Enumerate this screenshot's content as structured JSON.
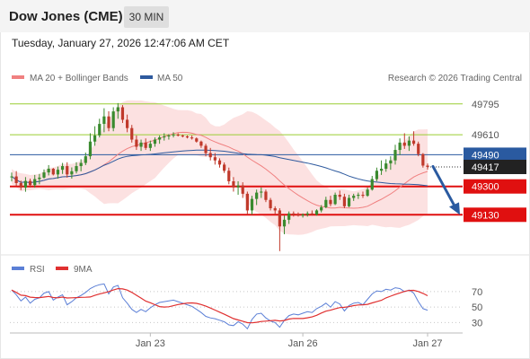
{
  "header": {
    "symbol": "Dow Jones (CME)",
    "timeframe": "30 MIN"
  },
  "timestamp": "Tuesday, January 27, 2026 12:47:06 AM CET",
  "legend": {
    "ma20_bb": "MA 20 + Bollinger Bands",
    "ma50": "MA 50",
    "copyright": "Research © 2026 Trading Central",
    "rsi": "RSI",
    "ma9": "9MA"
  },
  "colors": {
    "bull": "#3a8a2e",
    "bear": "#c0392b",
    "ma20": "#f08080",
    "bollinger_fill": "#fcdede",
    "ma50": "#2e5a9e",
    "support": "#e01010",
    "resistance": "#9acd32",
    "pivot": "#2a5aa0",
    "rsi": "#5b7fd6",
    "rsi_ma9": "#e03030",
    "arrow": "#2a5aa0"
  },
  "chart_data": [
    {
      "type": "candlestick",
      "title": "Dow Jones (CME)",
      "timeframe": "30 MIN",
      "ylim": [
        48900,
        49880
      ],
      "x_ticks": [
        "Jan 23",
        "Jan 26",
        "Jan 27"
      ],
      "levels": [
        {
          "value": 49795,
          "label": "49795",
          "role": "resistance"
        },
        {
          "value": 49610,
          "label": "49610",
          "role": "resistance"
        },
        {
          "value": 49490,
          "label": "49490",
          "role": "pivot"
        },
        {
          "value": 49300,
          "label": "49300",
          "role": "support"
        },
        {
          "value": 49130,
          "label": "49130",
          "role": "support"
        }
      ],
      "last_price": {
        "value": 49417,
        "label": "49417"
      },
      "forecast_arrow": {
        "from": 49420,
        "to": 49140,
        "direction": "down"
      },
      "series": [
        {
          "name": "MA 20",
          "role": "ma20"
        },
        {
          "name": "MA 50",
          "role": "ma50"
        }
      ],
      "ohlc": [
        [
          49355,
          49383,
          49330,
          49360
        ],
        [
          49360,
          49392,
          49304,
          49320
        ],
        [
          49320,
          49335,
          49278,
          49293
        ],
        [
          49293,
          49356,
          49268,
          49333
        ],
        [
          49333,
          49347,
          49293,
          49308
        ],
        [
          49308,
          49369,
          49293,
          49344
        ],
        [
          49344,
          49375,
          49313,
          49353
        ],
        [
          49353,
          49402,
          49347,
          49384
        ],
        [
          49384,
          49428,
          49366,
          49406
        ],
        [
          49406,
          49411,
          49366,
          49372
        ],
        [
          49372,
          49419,
          49347,
          49400
        ],
        [
          49400,
          49441,
          49375,
          49422
        ],
        [
          49422,
          49445,
          49353,
          49372
        ],
        [
          49372,
          49414,
          49347,
          49391
        ],
        [
          49391,
          49445,
          49378,
          49422
        ],
        [
          49422,
          49463,
          49391,
          49441
        ],
        [
          49441,
          49503,
          49428,
          49481
        ],
        [
          49481,
          49619,
          49463,
          49569
        ],
        [
          49569,
          49661,
          49544,
          49606
        ],
        [
          49606,
          49706,
          49594,
          49675
        ],
        [
          49675,
          49769,
          49625,
          49720
        ],
        [
          49720,
          49751,
          49631,
          49650
        ],
        [
          49650,
          49775,
          49631,
          49750
        ],
        [
          49750,
          49800,
          49706,
          49775
        ],
        [
          49775,
          49788,
          49681,
          49700
        ],
        [
          49700,
          49731,
          49625,
          49650
        ],
        [
          49650,
          49669,
          49563,
          49581
        ],
        [
          49581,
          49606,
          49519,
          49538
        ],
        [
          49538,
          49581,
          49513,
          49563
        ],
        [
          49563,
          49588,
          49519,
          49531
        ],
        [
          49531,
          49575,
          49513,
          49556
        ],
        [
          49556,
          49594,
          49538,
          49581
        ],
        [
          49581,
          49606,
          49556,
          49594
        ],
        [
          49594,
          49619,
          49575,
          49600
        ],
        [
          49600,
          49614,
          49581,
          49606
        ],
        [
          49606,
          49625,
          49594,
          49611
        ],
        [
          49611,
          49619,
          49600,
          49605
        ],
        [
          49605,
          49611,
          49594,
          49600
        ],
        [
          49600,
          49606,
          49588,
          49594
        ],
        [
          49594,
          49606,
          49581,
          49588
        ],
        [
          49588,
          49594,
          49563,
          49569
        ],
        [
          49569,
          49575,
          49531,
          49544
        ],
        [
          49544,
          49556,
          49481,
          49500
        ],
        [
          49500,
          49531,
          49456,
          49475
        ],
        [
          49475,
          49500,
          49431,
          49456
        ],
        [
          49456,
          49469,
          49413,
          49431
        ],
        [
          49431,
          49444,
          49381,
          49394
        ],
        [
          49394,
          49413,
          49313,
          49331
        ],
        [
          49331,
          49356,
          49269,
          49294
        ],
        [
          49294,
          49331,
          49250,
          49306
        ],
        [
          49306,
          49325,
          49231,
          49256
        ],
        [
          49256,
          49269,
          49131,
          49156
        ],
        [
          49156,
          49244,
          49131,
          49225
        ],
        [
          49225,
          49281,
          49188,
          49263
        ],
        [
          49263,
          49294,
          49231,
          49269
        ],
        [
          49269,
          49281,
          49206,
          49219
        ],
        [
          49219,
          49231,
          49156,
          49169
        ],
        [
          49169,
          49181,
          49131,
          49156
        ],
        [
          49156,
          49169,
          48912,
          49060
        ],
        [
          49060,
          49125,
          49013,
          49100
        ],
        [
          49100,
          49150,
          49075,
          49138
        ],
        [
          49138,
          49150,
          49119,
          49131
        ],
        [
          49131,
          49144,
          49119,
          49125
        ],
        [
          49125,
          49138,
          49113,
          49131
        ],
        [
          49131,
          49150,
          49119,
          49138
        ],
        [
          49138,
          49156,
          49125,
          49131
        ],
        [
          49131,
          49163,
          49125,
          49156
        ],
        [
          49156,
          49188,
          49144,
          49175
        ],
        [
          49175,
          49238,
          49169,
          49219
        ],
        [
          49219,
          49244,
          49181,
          49194
        ],
        [
          49194,
          49263,
          49188,
          49250
        ],
        [
          49250,
          49275,
          49219,
          49238
        ],
        [
          49238,
          49256,
          49169,
          49181
        ],
        [
          49181,
          49250,
          49175,
          49231
        ],
        [
          49231,
          49256,
          49213,
          49244
        ],
        [
          49244,
          49263,
          49225,
          49250
        ],
        [
          49250,
          49269,
          49231,
          49244
        ],
        [
          49244,
          49294,
          49238,
          49281
        ],
        [
          49281,
          49363,
          49275,
          49344
        ],
        [
          49344,
          49413,
          49331,
          49394
        ],
        [
          49394,
          49456,
          49369,
          49406
        ],
        [
          49406,
          49463,
          49388,
          49438
        ],
        [
          49438,
          49481,
          49400,
          49456
        ],
        [
          49456,
          49550,
          49431,
          49519
        ],
        [
          49519,
          49588,
          49488,
          49563
        ],
        [
          49563,
          49619,
          49525,
          49544
        ],
        [
          49544,
          49600,
          49513,
          49575
        ],
        [
          49575,
          49631,
          49544,
          49556
        ],
        [
          49556,
          49569,
          49481,
          49494
        ],
        [
          49494,
          49500,
          49413,
          49425
        ],
        [
          49425,
          49438,
          49400,
          49417
        ]
      ]
    },
    {
      "type": "line",
      "title": "RSI",
      "ylim": [
        20,
        85
      ],
      "y_ticks": [
        30,
        50,
        70
      ],
      "series": [
        {
          "name": "RSI",
          "role": "rsi",
          "values": [
            72,
            66,
            58,
            63,
            55,
            60,
            62,
            68,
            70,
            59,
            63,
            66,
            53,
            57,
            62,
            65,
            69,
            74,
            77,
            79,
            80,
            67,
            76,
            78,
            62,
            55,
            47,
            43,
            47,
            44,
            49,
            53,
            56,
            57,
            58,
            59,
            57,
            55,
            53,
            51,
            47,
            43,
            38,
            36,
            35,
            33,
            31,
            27,
            26,
            31,
            28,
            22,
            34,
            41,
            42,
            36,
            32,
            30,
            24,
            33,
            39,
            41,
            40,
            42,
            44,
            43,
            48,
            51,
            55,
            50,
            57,
            54,
            45,
            52,
            55,
            56,
            53,
            60,
            67,
            71,
            70,
            73,
            72,
            75,
            74,
            70,
            72,
            68,
            57,
            48,
            46
          ]
        },
        {
          "name": "9MA",
          "role": "rsi_ma9"
        }
      ]
    }
  ]
}
